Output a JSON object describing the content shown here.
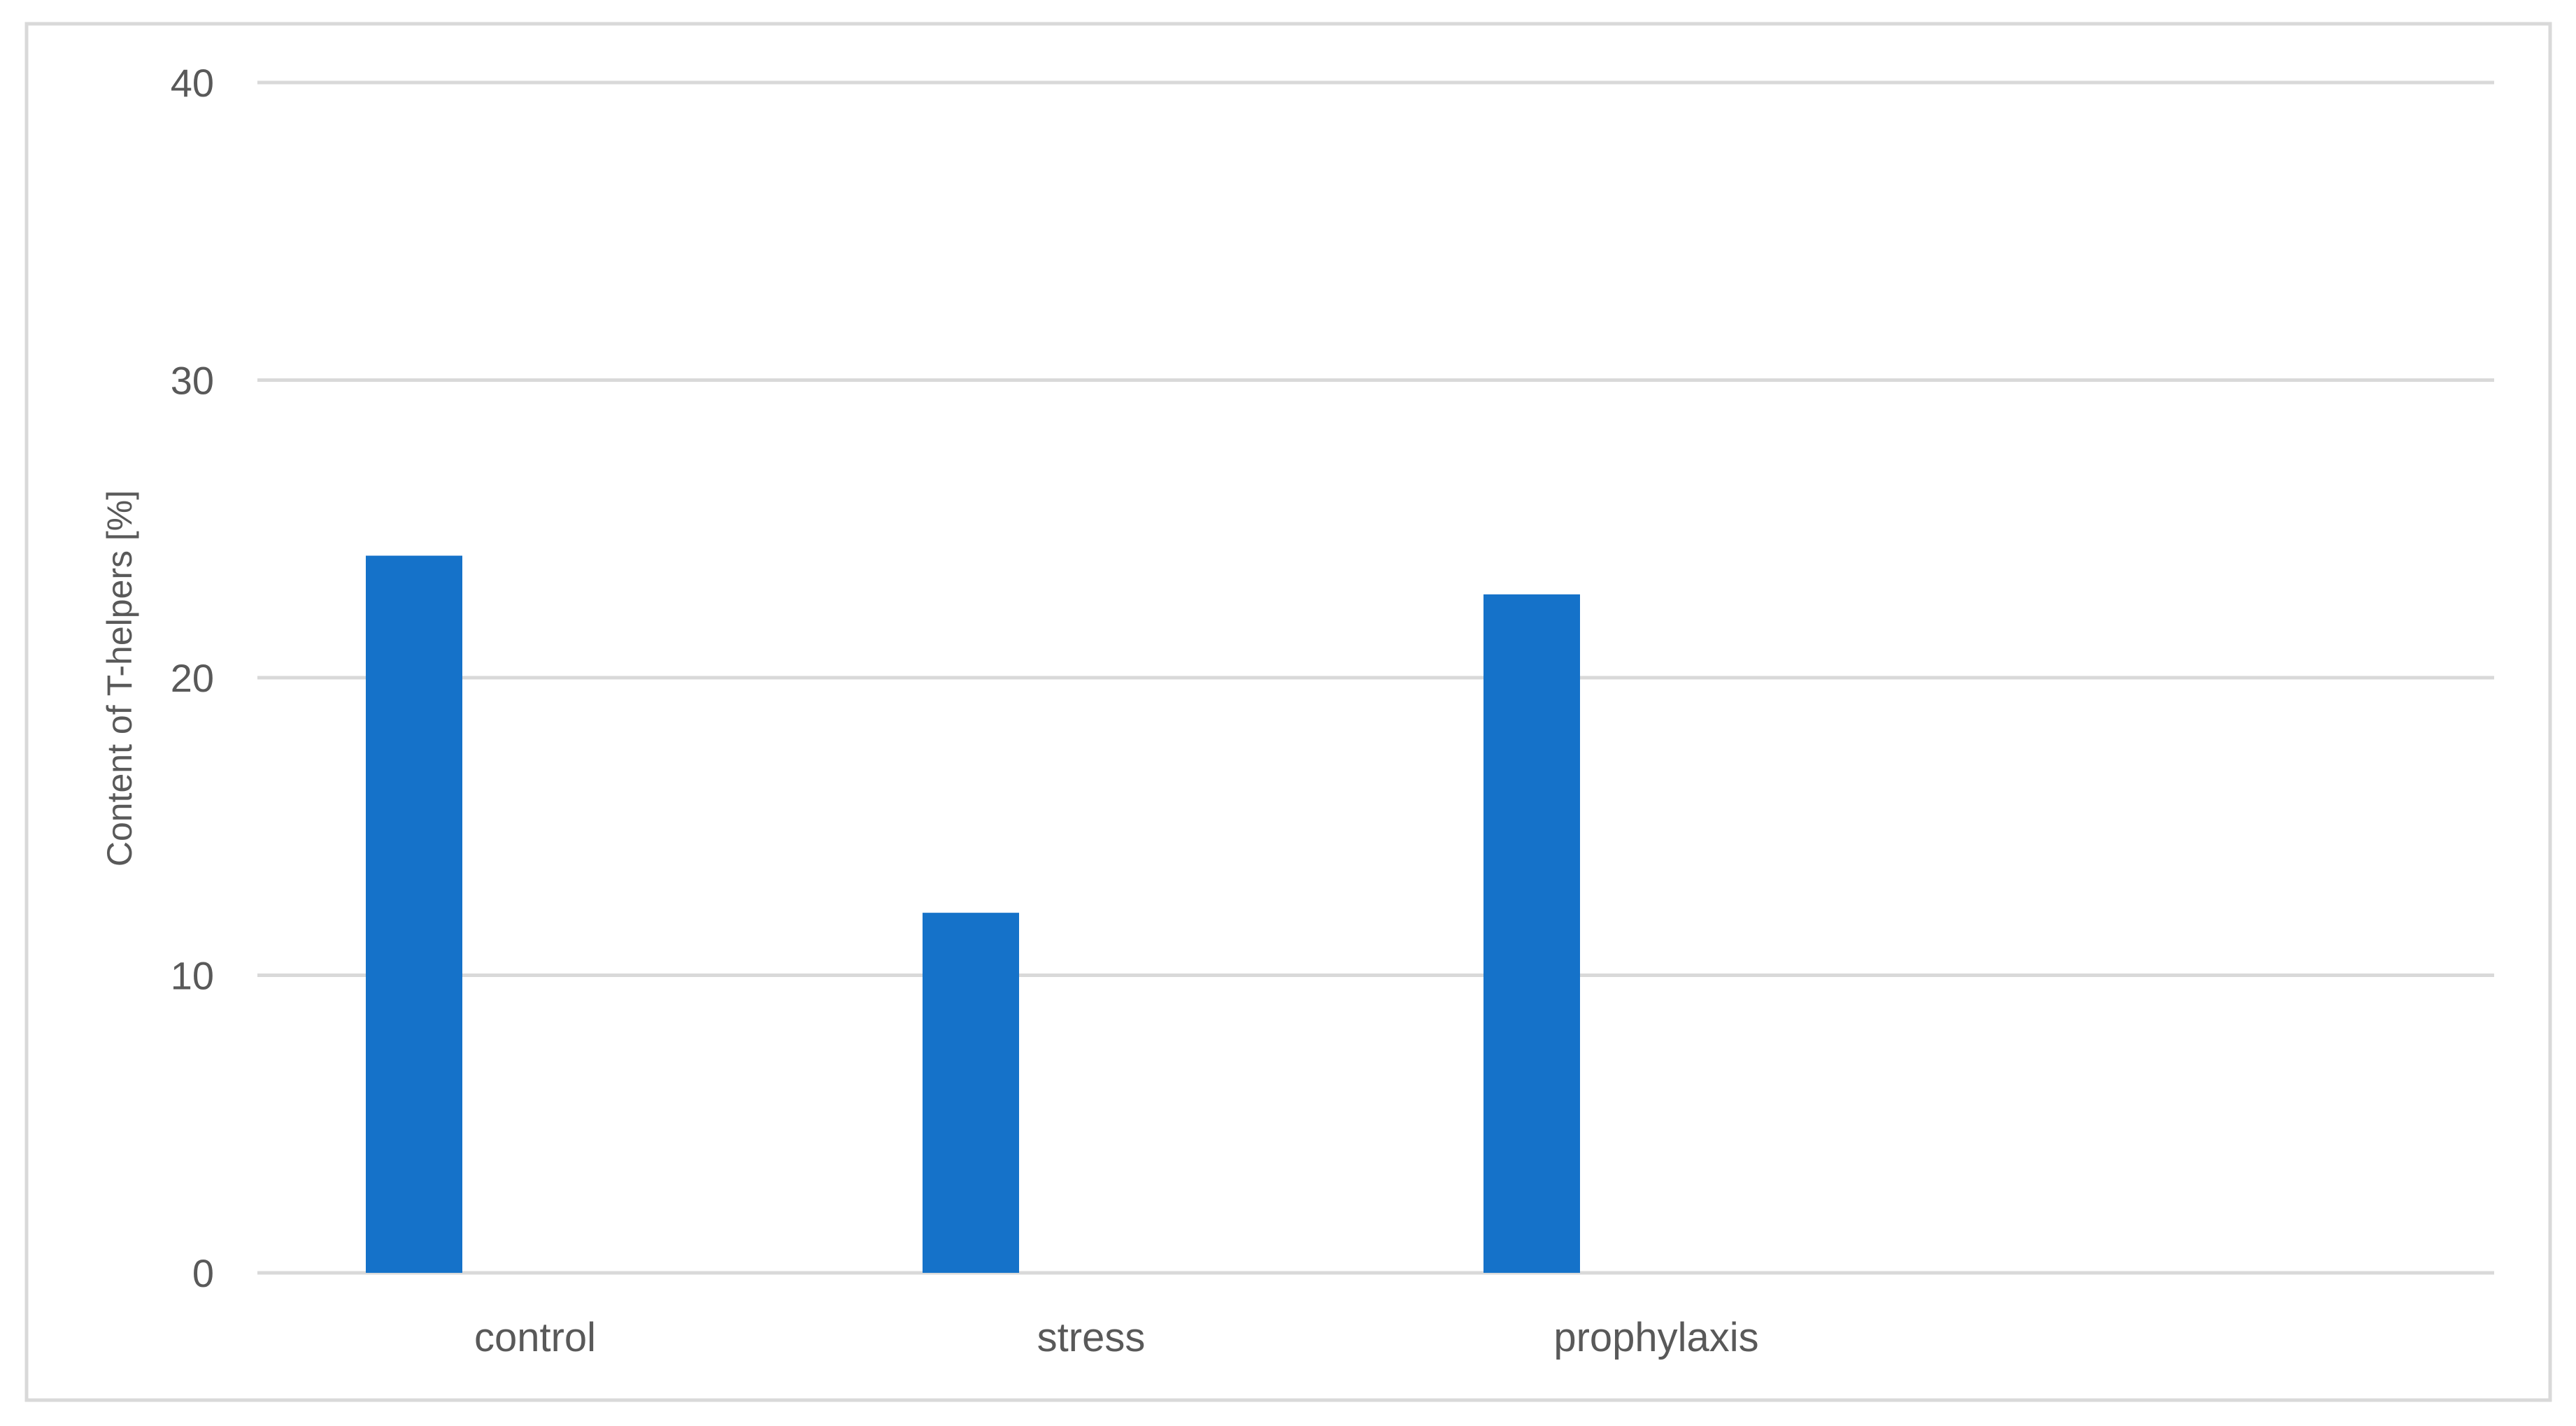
{
  "chart_data": {
    "type": "bar",
    "title": "",
    "xlabel": "",
    "ylabel": "Content of T-helpers  [%]",
    "categories": [
      "control",
      "stress",
      "prophylaxis"
    ],
    "series": [
      {
        "values": [
          24.1,
          12.1,
          22.8
        ]
      }
    ],
    "ylim": [
      0,
      40
    ],
    "yticks": [
      0,
      10,
      20,
      30,
      40
    ],
    "ytick_labels": [
      "0",
      "10",
      "20",
      "30",
      "40"
    ],
    "grid": true,
    "legend": "none",
    "colors": {
      "bar": "#1572c9",
      "gridline": "#d9d9d9",
      "text": "#595959",
      "frame": "#d9d9d9"
    }
  }
}
